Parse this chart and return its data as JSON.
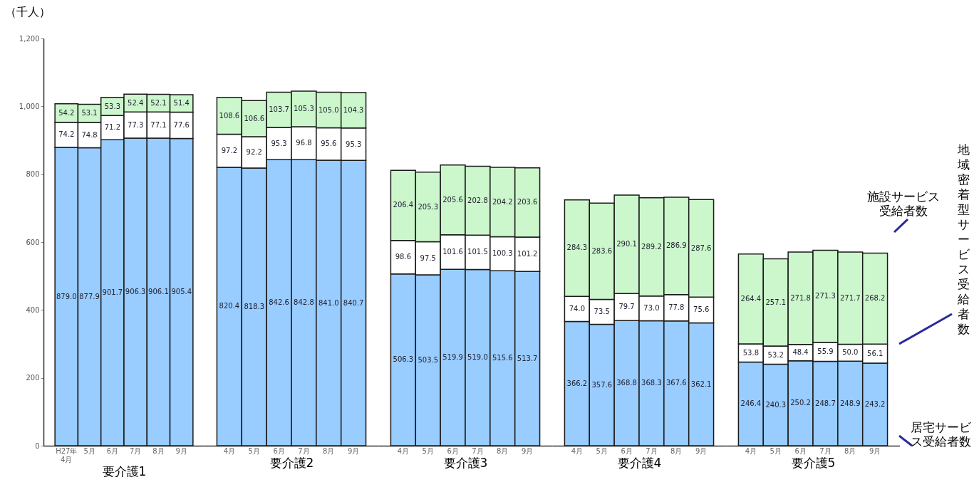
{
  "chart_data": [
    {
      "type": "bar",
      "stacked": true,
      "ylabel": "（千人）",
      "xlabel": "要介護1",
      "categories": [
        "H27年 4月",
        "5月",
        "6月",
        "7月",
        "8月",
        "9月"
      ],
      "ylim": [
        0,
        1200
      ],
      "yticks": [
        0,
        200,
        400,
        600,
        800,
        {
          "value": 1000,
          "label": "1,000"
        },
        {
          "value": 1200,
          "label": "1,200"
        }
      ],
      "legend": false,
      "grid": false,
      "series": [
        {
          "color": "#99ccff",
          "values": [
            879.0,
            877.9,
            901.7,
            906.3,
            906.1,
            905.4
          ],
          "value_labels": [
            "879.0",
            "877.9",
            "901.7",
            "906.3",
            "906.1",
            "905.4"
          ]
        },
        {
          "color": "#ffffff",
          "values": [
            74.2,
            74.8,
            71.2,
            77.3,
            77.1,
            77.6
          ],
          "value_labels": [
            "74.2",
            "74.8",
            "71.2",
            "77.3",
            "77.1",
            "77.6"
          ]
        },
        {
          "color": "#ccf7cc",
          "values": [
            54.2,
            53.1,
            53.3,
            52.4,
            52.1,
            51.4
          ],
          "value_labels": [
            "54.2",
            "53.1",
            "53.3",
            "52.4",
            "52.1",
            "51.4"
          ]
        }
      ]
    },
    {
      "type": "bar",
      "stacked": true,
      "xlabel": "要介護2",
      "categories": [
        "4月",
        "5月",
        "6月",
        "7月",
        "8月",
        "9月"
      ],
      "ylim": [
        0,
        1200
      ],
      "tick_labels": "x",
      "legend": false,
      "grid": false,
      "series": [
        {
          "color": "#99ccff",
          "values": [
            820.4,
            818.3,
            842.6,
            842.8,
            841.0,
            840.7
          ],
          "value_labels": [
            "820.4",
            "818.3",
            "842.6",
            "842.8",
            "841.0",
            "840.7"
          ]
        },
        {
          "color": "#ffffff",
          "values": [
            97.2,
            92.2,
            95.3,
            96.8,
            95.6,
            95.3
          ],
          "value_labels": [
            "97.2",
            "92.2",
            "95.3",
            "96.8",
            "95.6",
            "95.3"
          ]
        },
        {
          "color": "#ccf7cc",
          "values": [
            108.6,
            106.6,
            103.7,
            105.3,
            105.0,
            104.3
          ],
          "value_labels": [
            "108.6",
            "106.6",
            "103.7",
            "105.3",
            "105.0",
            "104.3"
          ]
        }
      ]
    },
    {
      "type": "bar",
      "stacked": true,
      "xlabel": "要介護3",
      "categories": [
        "4月",
        "5月",
        "6月",
        "7月",
        "8月",
        "9月"
      ],
      "ylim": [
        0,
        1200
      ],
      "tick_labels": "x",
      "legend": false,
      "grid": false,
      "series": [
        {
          "color": "#99ccff",
          "values": [
            506.3,
            503.5,
            519.9,
            519.0,
            515.6,
            513.7
          ],
          "value_labels": [
            "506.3",
            "503.5",
            "519.9",
            "519.0",
            "515.6",
            "513.7"
          ]
        },
        {
          "color": "#ffffff",
          "values": [
            98.6,
            97.5,
            101.6,
            101.5,
            100.3,
            101.2
          ],
          "value_labels": [
            "98.6",
            "97.5",
            "101.6",
            "101.5",
            "100.3",
            "101.2"
          ]
        },
        {
          "color": "#ccf7cc",
          "values": [
            206.4,
            205.3,
            205.6,
            202.8,
            204.2,
            203.6
          ],
          "value_labels": [
            "206.4",
            "205.3",
            "205.6",
            "202.8",
            "204.2",
            "203.6"
          ]
        }
      ]
    },
    {
      "type": "bar",
      "stacked": true,
      "xlabel": "要介護4",
      "categories": [
        "4月",
        "5月",
        "6月",
        "7月",
        "8月",
        "9月"
      ],
      "ylim": [
        0,
        1200
      ],
      "tick_labels": "x",
      "legend": false,
      "grid": false,
      "series": [
        {
          "color": "#99ccff",
          "values": [
            366.2,
            357.6,
            368.8,
            368.3,
            367.6,
            362.1
          ],
          "value_labels": [
            "366.2",
            "357.6",
            "368.8",
            "368.3",
            "367.6",
            "362.1"
          ]
        },
        {
          "color": "#ffffff",
          "values": [
            74.0,
            73.5,
            79.7,
            73.0,
            77.8,
            75.6
          ],
          "value_labels": [
            "74.0",
            "73.5",
            "79.7",
            "73.0",
            "77.8",
            "75.6"
          ]
        },
        {
          "color": "#ccf7cc",
          "values": [
            284.3,
            283.6,
            290.1,
            289.2,
            286.9,
            287.6
          ],
          "value_labels": [
            "284.3",
            "283.6",
            "290.1",
            "289.2",
            "286.9",
            "287.6"
          ]
        }
      ]
    },
    {
      "type": "bar",
      "stacked": true,
      "xlabel": "要介護5",
      "categories": [
        "4月",
        "5月",
        "6月",
        "7月",
        "8月",
        "9月"
      ],
      "ylim": [
        0,
        1200
      ],
      "tick_labels": "x",
      "legend": false,
      "grid": false,
      "series": [
        {
          "name": "居宅サービス受給者数",
          "color": "#99ccff",
          "values": [
            246.4,
            240.3,
            250.2,
            248.7,
            248.9,
            243.2
          ],
          "value_labels": [
            "246.4",
            "240.3",
            "250.2",
            "248.7",
            "248.9",
            "243.2"
          ]
        },
        {
          "name": "地域密着型サービス受給者数",
          "color": "#ffffff",
          "values": [
            53.8,
            53.2,
            48.4,
            55.9,
            50.0,
            56.1
          ],
          "value_labels": [
            "53.8",
            "53.2",
            "48.4",
            "55.9",
            "50.0",
            "56.1"
          ]
        },
        {
          "name": "施設サービス受給者数",
          "color": "#ccf7cc",
          "values": [
            264.4,
            257.1,
            271.8,
            271.3,
            271.7,
            268.2
          ],
          "value_labels": [
            "264.4",
            "257.1",
            "271.8",
            "271.3",
            "271.7",
            "268.2"
          ]
        }
      ]
    }
  ]
}
